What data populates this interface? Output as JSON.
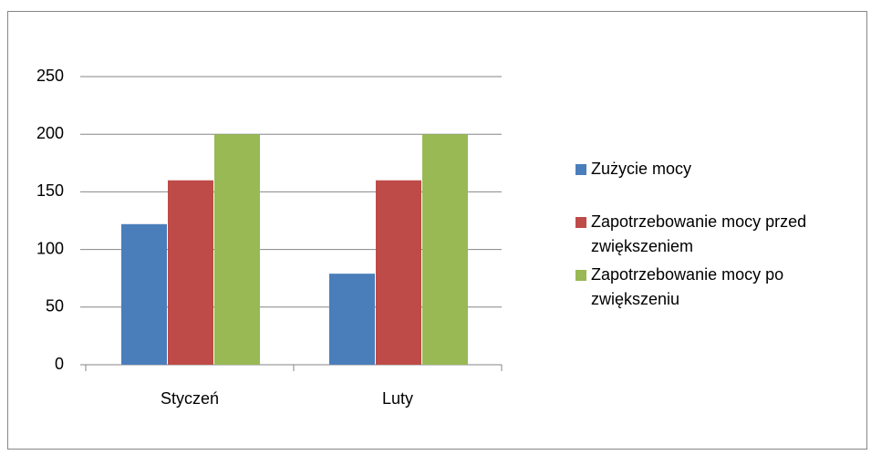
{
  "chart_data": {
    "type": "bar",
    "categories": [
      "Styczeń",
      "Luty"
    ],
    "series": [
      {
        "name": "Zużycie mocy",
        "color": "#4a7ebb",
        "values": [
          122,
          79
        ]
      },
      {
        "name": "Zapotrzebowanie mocy przed zwiększeniem",
        "color": "#be4b48",
        "values": [
          160,
          160
        ]
      },
      {
        "name": "Zapotrzebowanie mocy po zwiększeniu",
        "color": "#98b954",
        "values": [
          200,
          200
        ]
      }
    ],
    "ylim": [
      0,
      250
    ],
    "yticks": [
      0,
      50,
      100,
      150,
      200,
      250
    ],
    "grid": true,
    "legend": "right"
  }
}
